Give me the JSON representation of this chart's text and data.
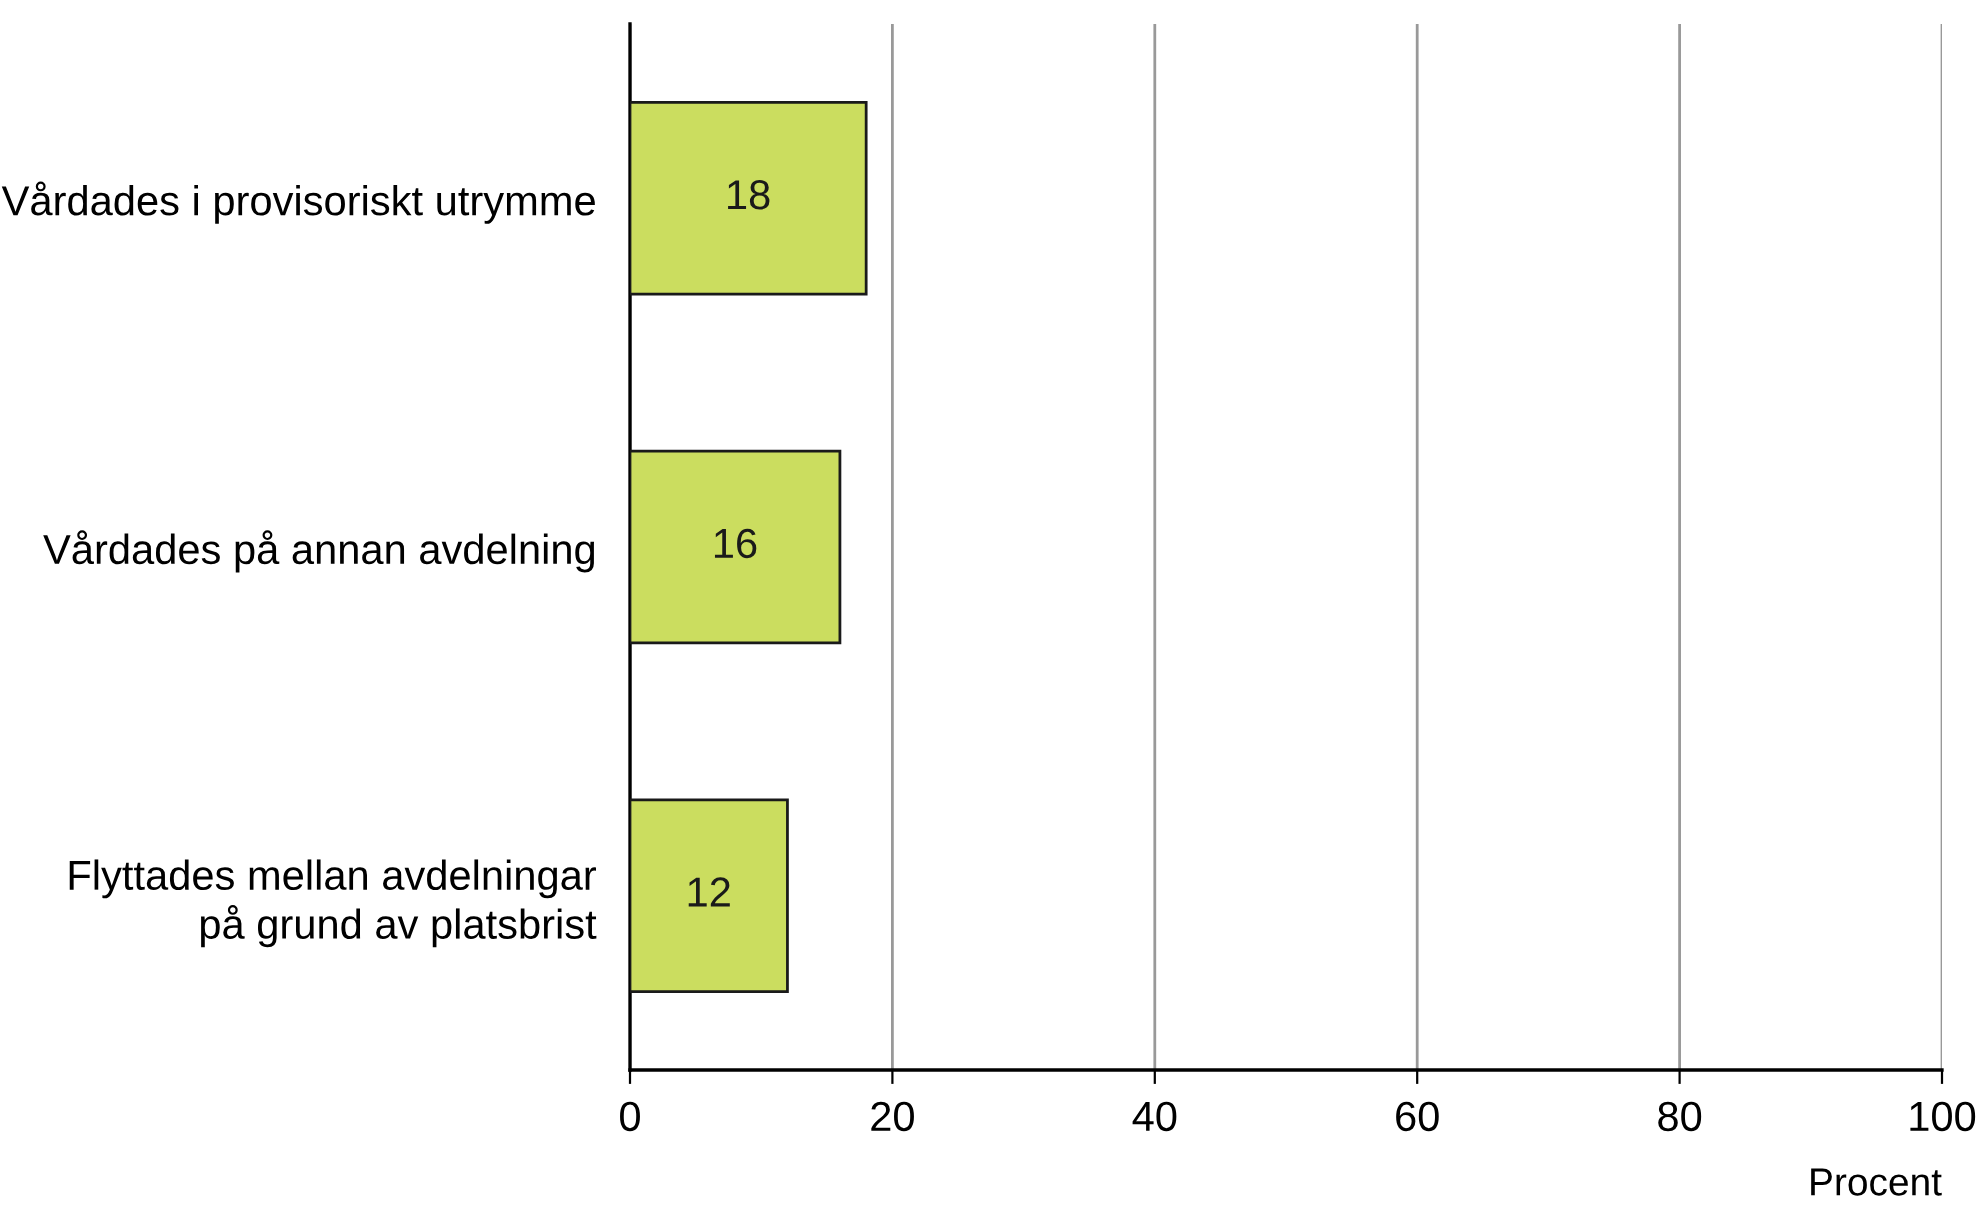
{
  "chart_data": {
    "type": "bar",
    "orientation": "horizontal",
    "categories": [
      "Vårdades i provisoriskt utrymme",
      "Vårdades på annan avdelning",
      "Flyttades mellan avdelningar\npå grund av platsbrist"
    ],
    "values": [
      18,
      16,
      12
    ],
    "color": "#cbdd5f",
    "data_labels": true,
    "xlim": [
      0,
      100
    ],
    "xticks": [
      0,
      20,
      40,
      60,
      80,
      100
    ],
    "xlabel": "Procent",
    "grid": "x",
    "legend": false
  }
}
